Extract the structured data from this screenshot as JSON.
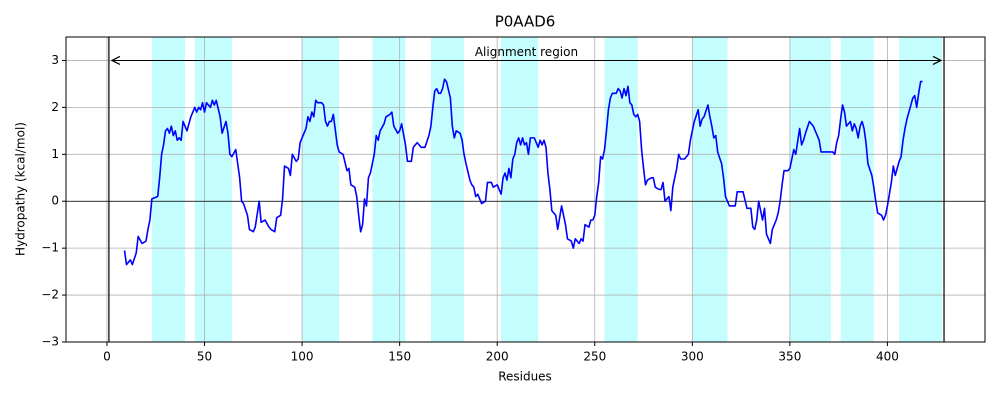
{
  "chart_data": {
    "type": "line",
    "title": "P0AAD6",
    "xlabel": "Residues",
    "ylabel": "Hydropathy (kcal/mol)",
    "xlim": [
      -21,
      450
    ],
    "ylim": [
      -3,
      3.5
    ],
    "xticks": [
      0,
      50,
      100,
      150,
      200,
      250,
      300,
      350,
      400
    ],
    "yticks": [
      {
        "value": -3,
        "label": "−3"
      },
      {
        "value": -2,
        "label": "−2"
      },
      {
        "value": -1,
        "label": "−1"
      },
      0,
      1,
      2,
      3
    ],
    "grid": true,
    "color": "#0000ff",
    "region_color": "#c4fdfd",
    "regions": [
      [
        23,
        40
      ],
      [
        45,
        64
      ],
      [
        100,
        119
      ],
      [
        136,
        153
      ],
      [
        166,
        183
      ],
      [
        202,
        221
      ],
      [
        255,
        272
      ],
      [
        300,
        318
      ],
      [
        350,
        371
      ],
      [
        376,
        393
      ],
      [
        406,
        428
      ]
    ],
    "alignment_region": {
      "text": "Alignment region",
      "start": 1,
      "end": 429,
      "y": 3
    },
    "x": [
      9,
      10,
      12,
      13,
      15,
      16,
      18,
      20,
      21,
      22,
      23,
      26,
      27,
      28,
      29,
      30,
      31,
      32,
      33,
      34,
      35,
      36,
      37,
      38,
      39,
      41,
      43,
      45,
      46,
      47,
      48,
      49,
      50,
      51,
      53,
      54,
      55,
      56,
      58,
      59,
      61,
      62,
      63,
      64,
      66,
      67,
      68,
      69,
      70,
      72,
      73,
      75,
      76,
      78,
      79,
      81,
      83,
      84,
      86,
      87,
      89,
      90,
      91,
      93,
      94,
      95,
      97,
      98,
      99,
      101,
      102,
      103,
      104,
      105,
      106,
      107,
      108,
      110,
      111,
      112,
      113,
      114,
      115,
      116,
      118,
      119,
      121,
      123,
      124,
      125,
      127,
      128,
      129,
      130,
      131,
      132,
      133,
      134,
      135,
      137,
      138,
      139,
      140,
      142,
      143,
      145,
      146,
      147,
      149,
      150,
      151,
      153,
      154,
      156,
      157,
      159,
      161,
      163,
      165,
      166,
      167,
      168,
      169,
      170,
      171,
      172,
      173,
      174,
      176,
      177,
      178,
      179,
      181,
      182,
      183,
      184,
      186,
      187,
      188,
      189,
      190,
      192,
      194,
      195,
      197,
      198,
      200,
      202,
      203,
      204,
      205,
      206,
      207,
      208,
      209,
      210,
      211,
      212,
      213,
      214,
      215,
      216,
      217,
      219,
      221,
      222,
      223,
      224,
      225,
      226,
      227,
      228,
      230,
      231,
      233,
      234,
      235,
      236,
      238,
      239,
      240,
      242,
      243,
      244,
      245,
      247,
      248,
      249,
      250,
      251,
      252,
      253,
      254,
      255,
      256,
      257,
      258,
      259,
      261,
      262,
      263,
      264,
      265,
      266,
      267,
      268,
      269,
      270,
      271,
      272,
      273,
      274,
      275,
      276,
      277,
      279,
      280,
      281,
      283,
      284,
      285,
      286,
      288,
      289,
      290,
      292,
      293,
      294,
      296,
      298,
      299,
      301,
      303,
      304,
      305,
      306,
      308,
      309,
      310,
      311,
      312,
      313,
      315,
      316,
      317,
      319,
      321,
      322,
      323,
      324,
      326,
      328,
      329,
      330,
      331,
      332,
      333,
      334,
      335,
      336,
      337,
      338,
      340,
      341,
      343,
      344,
      345,
      346,
      347,
      349,
      350,
      352,
      353,
      355,
      356,
      357,
      358,
      360,
      362,
      363,
      365,
      366,
      368,
      370,
      372,
      373,
      374,
      375,
      376,
      377,
      378,
      379,
      381,
      382,
      383,
      384,
      385,
      386,
      387,
      388,
      389,
      390,
      392,
      393,
      394,
      395,
      397,
      398,
      399,
      400,
      402,
      403,
      404,
      406,
      407,
      408,
      409,
      410,
      412,
      413,
      414,
      415,
      416,
      417,
      418
    ],
    "values": [
      -1.05,
      -1.35,
      -1.25,
      -1.35,
      -1.1,
      -0.75,
      -0.9,
      -0.85,
      -0.6,
      -0.4,
      0.05,
      0.1,
      0.5,
      1.0,
      1.2,
      1.5,
      1.55,
      1.45,
      1.6,
      1.4,
      1.5,
      1.3,
      1.35,
      1.3,
      1.7,
      1.5,
      1.8,
      2.0,
      1.9,
      2.0,
      1.95,
      2.1,
      1.9,
      2.1,
      2.0,
      2.15,
      2.05,
      2.15,
      1.8,
      1.45,
      1.7,
      1.45,
      1.0,
      0.95,
      1.1,
      0.8,
      0.5,
      0.0,
      -0.05,
      -0.3,
      -0.6,
      -0.65,
      -0.55,
      0.0,
      -0.45,
      -0.4,
      -0.55,
      -0.6,
      -0.65,
      -0.35,
      -0.3,
      0.05,
      0.75,
      0.7,
      0.55,
      1.0,
      0.85,
      0.9,
      1.25,
      1.45,
      1.55,
      1.8,
      1.7,
      1.9,
      1.8,
      2.15,
      2.1,
      2.1,
      2.05,
      1.7,
      1.6,
      1.7,
      1.7,
      1.85,
      1.2,
      1.05,
      1.0,
      0.65,
      0.7,
      0.35,
      0.3,
      0.1,
      -0.3,
      -0.65,
      -0.5,
      0.05,
      -0.1,
      0.5,
      0.6,
      1.0,
      1.4,
      1.3,
      1.5,
      1.65,
      1.8,
      1.85,
      1.9,
      1.6,
      1.45,
      1.5,
      1.65,
      1.2,
      0.85,
      0.85,
      1.15,
      1.25,
      1.15,
      1.15,
      1.4,
      1.6,
      2.0,
      2.35,
      2.4,
      2.3,
      2.3,
      2.4,
      2.6,
      2.55,
      2.2,
      1.6,
      1.35,
      1.5,
      1.45,
      1.3,
      1.0,
      0.8,
      0.45,
      0.35,
      0.3,
      0.1,
      0.15,
      -0.05,
      0.0,
      0.4,
      0.4,
      0.3,
      0.35,
      0.15,
      0.5,
      0.6,
      0.45,
      0.7,
      0.5,
      0.9,
      1.0,
      1.25,
      1.35,
      1.2,
      1.35,
      1.2,
      1.25,
      1.0,
      1.35,
      1.35,
      1.15,
      1.3,
      1.2,
      1.3,
      1.15,
      0.6,
      0.25,
      -0.2,
      -0.3,
      -0.6,
      -0.1,
      -0.3,
      -0.5,
      -0.8,
      -0.85,
      -1.0,
      -0.8,
      -0.9,
      -0.8,
      -0.85,
      -0.5,
      -0.55,
      -0.4,
      -0.4,
      -0.3,
      0.1,
      0.4,
      0.95,
      0.9,
      1.1,
      1.5,
      1.95,
      2.2,
      2.3,
      2.3,
      2.4,
      2.35,
      2.2,
      2.4,
      2.25,
      2.45,
      2.1,
      2.05,
      1.85,
      1.8,
      1.85,
      1.7,
      1.1,
      0.7,
      0.35,
      0.45,
      0.5,
      0.5,
      0.3,
      0.25,
      0.25,
      0.4,
      0.0,
      0.1,
      -0.2,
      0.3,
      0.7,
      1.0,
      0.9,
      0.9,
      1.0,
      1.3,
      1.7,
      1.95,
      1.6,
      1.75,
      1.8,
      2.05,
      1.8,
      1.6,
      1.35,
      1.4,
      1.05,
      0.8,
      0.5,
      0.1,
      -0.1,
      -0.1,
      -0.1,
      0.2,
      0.2,
      0.2,
      -0.15,
      -0.15,
      -0.15,
      -0.55,
      -0.6,
      -0.4,
      0.0,
      -0.2,
      -0.4,
      -0.15,
      -0.7,
      -0.9,
      -0.6,
      -0.4,
      -0.25,
      0.0,
      0.35,
      0.65,
      0.65,
      0.7,
      1.1,
      1.0,
      1.55,
      1.2,
      1.3,
      1.45,
      1.7,
      1.6,
      1.5,
      1.3,
      1.05,
      1.05,
      1.05,
      1.05,
      1.0,
      1.25,
      1.4,
      1.75,
      2.05,
      1.9,
      1.6,
      1.7,
      1.5,
      1.65,
      1.55,
      1.35,
      1.6,
      1.7,
      1.55,
      1.25,
      0.8,
      0.55,
      0.3,
      0.0,
      -0.25,
      -0.3,
      -0.4,
      -0.3,
      -0.1,
      0.4,
      0.75,
      0.55,
      0.85,
      0.95,
      1.3,
      1.55,
      1.75,
      2.05,
      2.2,
      2.25,
      2.0,
      2.3,
      2.55,
      2.55
    ]
  }
}
